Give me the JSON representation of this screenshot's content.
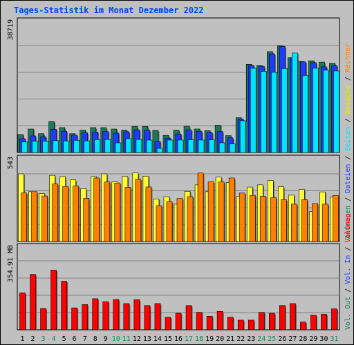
{
  "chart_data": [
    {
      "type": "bar",
      "title": "Tages-Statistik im Monat Dezember 2022",
      "ymax_label": "38719",
      "ylim": [
        0,
        38719
      ],
      "categories": [
        "1",
        "2",
        "3",
        "4",
        "5",
        "6",
        "7",
        "8",
        "9",
        "10",
        "11",
        "12",
        "13",
        "14",
        "15",
        "16",
        "17",
        "18",
        "19",
        "20",
        "21",
        "22",
        "23",
        "24",
        "25",
        "26",
        "27",
        "28",
        "29",
        "30",
        "31"
      ],
      "weekend_days": [
        "3",
        "4",
        "10",
        "11",
        "17",
        "18",
        "24",
        "25",
        "31"
      ],
      "series": [
        {
          "name": "Anfragen",
          "color": "#1a7a5a",
          "values": [
            6500,
            8500,
            6800,
            11200,
            9000,
            6800,
            8100,
            9000,
            9000,
            8500,
            8100,
            9400,
            9400,
            8000,
            6200,
            8100,
            9500,
            8500,
            7900,
            9900,
            6100,
            12600,
            31900,
            31500,
            36500,
            38700,
            34300,
            33000,
            33200,
            32700,
            32300
          ]
        },
        {
          "name": "Dateien",
          "color": "#1e3cff",
          "values": [
            5000,
            6000,
            5700,
            8400,
            7700,
            6300,
            7100,
            7400,
            7600,
            7000,
            7500,
            8200,
            8000,
            4000,
            5200,
            6700,
            8200,
            7600,
            7200,
            7600,
            5300,
            12100,
            31500,
            31200,
            35700,
            38400,
            34300,
            32800,
            32500,
            31000,
            31500
          ]
        },
        {
          "name": "Seiten",
          "color": "#00e5ff",
          "values": [
            3800,
            4100,
            4100,
            4300,
            4200,
            4400,
            4200,
            4700,
            4700,
            3500,
            5000,
            4700,
            4500,
            1500,
            4500,
            4500,
            4600,
            4500,
            4600,
            3500,
            3100,
            11500,
            30500,
            29400,
            29000,
            30400,
            36000,
            27900,
            30500,
            29800,
            29500
          ]
        }
      ]
    },
    {
      "type": "bar",
      "ymax_label": "543",
      "ylim": [
        0,
        543
      ],
      "categories": [
        "1",
        "2",
        "3",
        "4",
        "5",
        "6",
        "7",
        "8",
        "9",
        "10",
        "11",
        "12",
        "13",
        "14",
        "15",
        "16",
        "17",
        "18",
        "19",
        "20",
        "21",
        "22",
        "23",
        "24",
        "25",
        "26",
        "27",
        "28",
        "29",
        "30",
        "31"
      ],
      "series": [
        {
          "name": "Besuche",
          "color": "#ffff33",
          "values": [
            543,
            400,
            385,
            531,
            521,
            495,
            425,
            521,
            543,
            479,
            522,
            550,
            524,
            342,
            360,
            300,
            403,
            455,
            400,
            517,
            473,
            361,
            437,
            455,
            490,
            440,
            372,
            418,
            240,
            398,
            356
          ]
        },
        {
          "name": "Rechner",
          "color": "#ff8000",
          "values": [
            390,
            400,
            365,
            463,
            442,
            445,
            347,
            510,
            478,
            470,
            435,
            499,
            438,
            288,
            320,
            345,
            360,
            550,
            479,
            478,
            510,
            389,
            370,
            364,
            352,
            336,
            300,
            336,
            305,
            300,
            370
          ]
        }
      ]
    },
    {
      "type": "bar",
      "ymax_label": "354.91 MB",
      "ylim": [
        0,
        354.91
      ],
      "categories": [
        "1",
        "2",
        "3",
        "4",
        "5",
        "6",
        "7",
        "8",
        "9",
        "10",
        "11",
        "12",
        "13",
        "14",
        "15",
        "16",
        "17",
        "18",
        "19",
        "20",
        "21",
        "22",
        "23",
        "24",
        "25",
        "26",
        "27",
        "28",
        "29",
        "30",
        "31"
      ],
      "series": [
        {
          "name": "Volumen",
          "color": "#ff0000",
          "values": [
            190,
            285,
            110,
            307,
            250,
            113,
            130,
            160,
            145,
            156,
            135,
            155,
            125,
            135,
            65,
            85,
            125,
            90,
            70,
            95,
            65,
            50,
            50,
            90,
            85,
            125,
            135,
            40,
            75,
            80,
            108
          ]
        }
      ]
    }
  ],
  "legend": {
    "top": [
      {
        "text": "Anfragen",
        "color": "#1a7a5a"
      },
      {
        "text": "Dateien",
        "color": "#1e3cff"
      },
      {
        "text": "Seiten",
        "color": "#00e5ff"
      },
      {
        "text": "Besuche",
        "color": "#e8e800"
      },
      {
        "text": "Rechner",
        "color": "#ff8000"
      }
    ],
    "bottom": [
      {
        "text": "Vol. Out",
        "color": "#1a7a5a"
      },
      {
        "text": "Vol. In",
        "color": "#1e3cff"
      },
      {
        "text": "Volumen",
        "color": "#ff0000"
      }
    ],
    "separator": " / ",
    "separator_color": "#000000"
  }
}
